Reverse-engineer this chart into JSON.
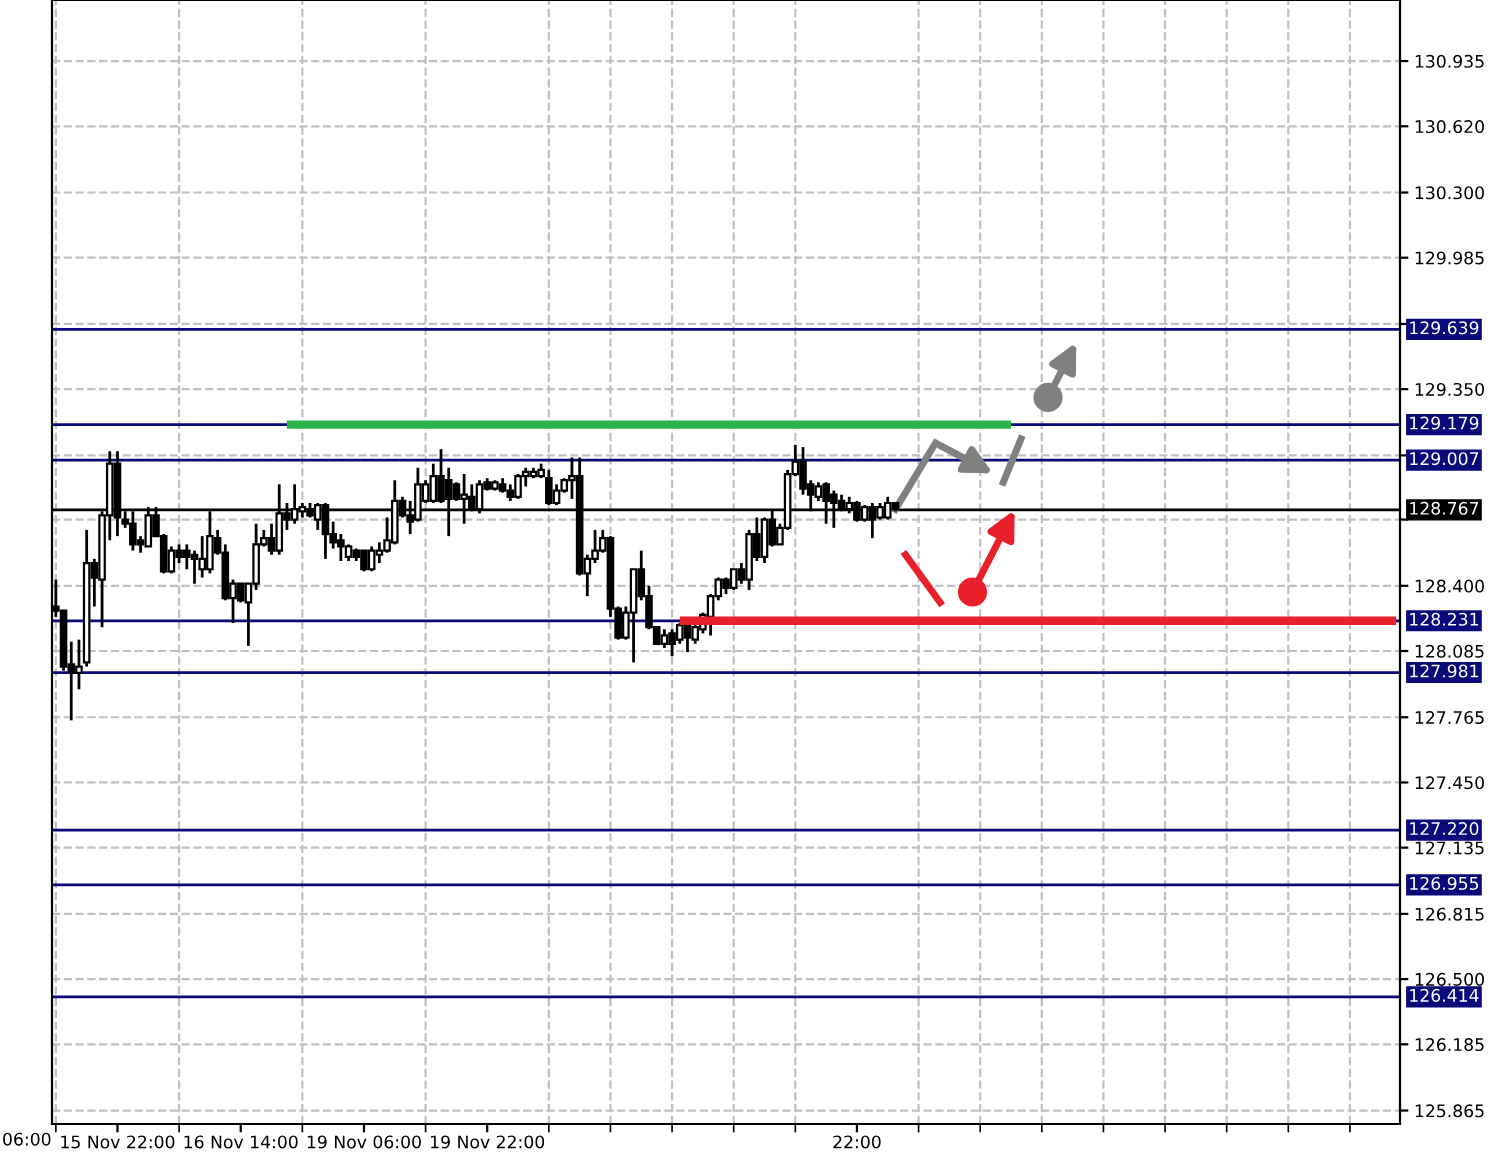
{
  "chart_data": {
    "type": "candlestick",
    "annotations": [
      "06:00"
    ],
    "categories": [
      null,
      null,
      null,
      null,
      null,
      null,
      null,
      null,
      "15 Nov 22:00",
      null,
      null,
      null,
      null,
      null,
      null,
      null,
      null,
      null,
      null,
      null,
      null,
      null,
      null,
      null,
      "16 Nov 14:00",
      null,
      null,
      null,
      null,
      null,
      null,
      null,
      null,
      null,
      null,
      null,
      null,
      null,
      null,
      null,
      "19 Nov 06:00",
      null,
      null,
      null,
      null,
      null,
      null,
      null,
      null,
      null,
      null,
      null,
      null,
      null,
      null,
      null,
      "19 Nov 22:00",
      null,
      null,
      null,
      null,
      null,
      null,
      null,
      null,
      null,
      null,
      null,
      null,
      null,
      null,
      null,
      null,
      null,
      null,
      null,
      null,
      null,
      null,
      null,
      null,
      null,
      null,
      null,
      null,
      null,
      null,
      null,
      null,
      null,
      null,
      null,
      null,
      null,
      null,
      null,
      null,
      null,
      null,
      null,
      null,
      null,
      null,
      null,
      "22:00",
      null,
      null,
      null,
      null,
      null,
      null,
      null,
      null,
      null,
      null,
      null,
      null,
      null,
      null,
      null,
      null,
      null,
      null,
      null,
      null,
      null,
      null,
      null,
      null,
      null,
      null,
      null,
      null,
      null,
      null,
      null,
      null,
      null,
      null,
      null,
      null,
      null,
      null,
      null,
      null,
      null,
      null,
      null,
      null,
      null,
      null,
      null,
      null,
      null,
      null,
      null,
      null,
      null,
      null,
      null,
      null,
      null,
      null,
      null,
      null,
      null,
      null,
      null,
      null,
      null,
      null,
      null,
      null,
      null,
      null
    ],
    "ohlc": [
      [
        128.3,
        128.43,
        128.25,
        128.28
      ],
      [
        128.28,
        128.28,
        127.99,
        128.01
      ],
      [
        128.02,
        128.13,
        127.75,
        127.98
      ],
      [
        127.98,
        128.14,
        127.9,
        128.01
      ],
      [
        128.03,
        128.67,
        128.01,
        128.51
      ],
      [
        128.51,
        128.53,
        128.3,
        128.44
      ],
      [
        128.43,
        128.76,
        128.2,
        128.74
      ],
      [
        128.74,
        129.05,
        128.62,
        128.99
      ],
      [
        128.99,
        129.05,
        128.64,
        128.73
      ],
      [
        128.72,
        128.76,
        128.68,
        128.7
      ],
      [
        128.7,
        128.76,
        128.57,
        128.6
      ],
      [
        128.62,
        128.64,
        128.56,
        128.6
      ],
      [
        128.59,
        128.78,
        128.59,
        128.74
      ],
      [
        128.74,
        128.78,
        128.64,
        128.64
      ],
      [
        128.64,
        128.65,
        128.46,
        128.47
      ],
      [
        128.47,
        128.59,
        128.46,
        128.57
      ],
      [
        128.57,
        128.6,
        128.51,
        128.54
      ],
      [
        128.57,
        128.6,
        128.48,
        128.54
      ],
      [
        128.55,
        128.57,
        128.41,
        128.53
      ],
      [
        128.48,
        128.64,
        128.44,
        128.53
      ],
      [
        128.48,
        128.76,
        128.46,
        128.64
      ],
      [
        128.63,
        128.67,
        128.55,
        128.56
      ],
      [
        128.56,
        128.6,
        128.33,
        128.34
      ],
      [
        128.34,
        128.43,
        128.22,
        128.41
      ],
      [
        128.41,
        128.41,
        128.32,
        128.33
      ],
      [
        128.32,
        128.41,
        128.11,
        128.41
      ],
      [
        128.41,
        128.7,
        128.38,
        128.6
      ],
      [
        128.6,
        128.67,
        128.59,
        128.63
      ],
      [
        128.63,
        128.7,
        128.55,
        128.57
      ],
      [
        128.57,
        128.89,
        128.55,
        128.75
      ],
      [
        128.75,
        128.8,
        128.67,
        128.72
      ],
      [
        128.72,
        128.89,
        128.7,
        128.77
      ],
      [
        128.76,
        128.8,
        128.73,
        128.78
      ],
      [
        128.77,
        128.8,
        128.73,
        128.74
      ],
      [
        128.72,
        128.8,
        128.67,
        128.79
      ],
      [
        128.79,
        128.8,
        128.53,
        128.65
      ],
      [
        128.65,
        128.71,
        128.58,
        128.61
      ],
      [
        128.62,
        128.65,
        128.52,
        128.59
      ],
      [
        128.54,
        128.6,
        128.52,
        128.59
      ],
      [
        128.57,
        128.58,
        128.52,
        128.54
      ],
      [
        128.57,
        128.57,
        128.47,
        128.48
      ],
      [
        128.48,
        128.59,
        128.47,
        128.57
      ],
      [
        128.55,
        128.61,
        128.51,
        128.57
      ],
      [
        128.57,
        128.73,
        128.56,
        128.62
      ],
      [
        128.61,
        128.91,
        128.6,
        128.81
      ],
      [
        128.81,
        128.83,
        128.73,
        128.74
      ],
      [
        128.74,
        128.81,
        128.65,
        128.71
      ],
      [
        128.72,
        128.97,
        128.71,
        128.89
      ],
      [
        128.81,
        128.91,
        128.8,
        128.89
      ],
      [
        128.81,
        128.99,
        128.8,
        128.93
      ],
      [
        128.93,
        129.06,
        128.8,
        128.81
      ],
      [
        128.91,
        128.97,
        128.64,
        128.82
      ],
      [
        128.89,
        128.9,
        128.81,
        128.82
      ],
      [
        128.82,
        128.94,
        128.7,
        128.84
      ],
      [
        128.83,
        128.89,
        128.76,
        128.77
      ],
      [
        128.77,
        128.91,
        128.75,
        128.89
      ],
      [
        128.9,
        128.92,
        128.86,
        128.87
      ],
      [
        128.87,
        128.91,
        128.86,
        128.9
      ],
      [
        128.89,
        128.92,
        128.85,
        128.86
      ],
      [
        128.86,
        128.89,
        128.81,
        128.83
      ],
      [
        128.83,
        128.94,
        128.82,
        128.93
      ],
      [
        128.93,
        128.97,
        128.88,
        128.95
      ],
      [
        128.93,
        128.97,
        128.92,
        128.95
      ],
      [
        128.93,
        128.99,
        128.92,
        128.96
      ],
      [
        128.92,
        128.96,
        128.79,
        128.8
      ],
      [
        128.8,
        128.89,
        128.79,
        128.86
      ],
      [
        128.86,
        128.92,
        128.85,
        128.91
      ],
      [
        128.91,
        129.02,
        128.82,
        128.93
      ],
      [
        128.93,
        129.02,
        128.45,
        128.46
      ],
      [
        128.46,
        128.55,
        128.35,
        128.53
      ],
      [
        128.53,
        128.67,
        128.51,
        128.57
      ],
      [
        128.57,
        128.67,
        128.56,
        128.63
      ],
      [
        128.63,
        128.64,
        128.25,
        128.29
      ],
      [
        128.29,
        128.3,
        128.14,
        128.15
      ],
      [
        128.15,
        128.3,
        128.14,
        128.27
      ],
      [
        128.27,
        128.48,
        128.03,
        128.48
      ],
      [
        128.48,
        128.57,
        128.33,
        128.35
      ],
      [
        128.35,
        128.4,
        128.19,
        128.2
      ],
      [
        128.2,
        128.2,
        128.12,
        128.12
      ],
      [
        128.12,
        128.19,
        128.1,
        128.16
      ],
      [
        128.17,
        128.19,
        128.06,
        128.12
      ],
      [
        128.14,
        128.22,
        128.12,
        128.21
      ],
      [
        128.21,
        128.22,
        128.08,
        128.15
      ],
      [
        128.14,
        128.21,
        128.12,
        128.2
      ],
      [
        128.19,
        128.27,
        128.17,
        128.26
      ],
      [
        128.25,
        128.36,
        128.16,
        128.35
      ],
      [
        128.35,
        128.44,
        128.33,
        128.43
      ],
      [
        128.43,
        128.44,
        128.36,
        128.39
      ],
      [
        128.39,
        128.48,
        128.38,
        128.48
      ],
      [
        128.48,
        128.51,
        128.41,
        128.43
      ],
      [
        128.43,
        128.67,
        128.38,
        128.65
      ],
      [
        128.65,
        128.73,
        128.52,
        128.54
      ],
      [
        128.54,
        128.73,
        128.51,
        128.72
      ],
      [
        128.72,
        128.77,
        128.59,
        128.6
      ],
      [
        128.6,
        128.7,
        128.6,
        128.68
      ],
      [
        128.68,
        128.96,
        128.67,
        128.94
      ],
      [
        128.94,
        129.08,
        128.93,
        129.0
      ],
      [
        129.0,
        129.07,
        128.84,
        128.87
      ],
      [
        128.89,
        128.91,
        128.76,
        128.84
      ],
      [
        128.83,
        128.9,
        128.81,
        128.88
      ],
      [
        128.89,
        128.9,
        128.7,
        128.81
      ],
      [
        128.84,
        128.86,
        128.68,
        128.8
      ],
      [
        128.81,
        128.84,
        128.76,
        128.77
      ],
      [
        128.77,
        128.83,
        128.75,
        128.8
      ],
      [
        128.8,
        128.81,
        128.71,
        128.72
      ],
      [
        128.72,
        128.79,
        128.71,
        128.78
      ],
      [
        128.78,
        128.8,
        128.63,
        128.72
      ],
      [
        128.73,
        128.8,
        128.72,
        128.78
      ],
      [
        128.73,
        128.83,
        128.72,
        128.8
      ],
      [
        128.8,
        128.8,
        128.76,
        128.77
      ],
      null,
      null,
      null,
      null,
      null,
      null,
      null,
      null,
      null,
      null,
      null,
      null,
      null,
      null,
      null,
      null,
      null,
      null,
      null,
      null,
      null,
      null,
      null,
      null,
      null,
      null,
      null,
      null,
      null,
      null,
      null,
      null,
      null,
      null,
      null,
      null,
      null,
      null,
      null,
      null,
      null,
      null,
      null,
      null,
      null,
      null,
      null,
      null,
      null,
      null,
      null,
      null,
      null,
      null,
      null,
      null,
      null,
      null,
      null,
      null,
      null,
      null,
      null,
      null,
      null
    ],
    "series": [
      {
        "type": "line",
        "color": "#2db34a",
        "values": [
          null,
          null,
          null,
          null,
          null,
          null,
          null,
          null,
          null,
          null,
          null,
          null,
          null,
          null,
          null,
          null,
          null,
          null,
          null,
          null,
          null,
          null,
          null,
          null,
          null,
          null,
          null,
          null,
          null,
          null,
          129.179,
          129.179,
          129.179,
          129.179,
          129.179,
          129.179,
          129.179,
          129.179,
          129.179,
          129.179,
          129.179,
          129.179,
          129.179,
          129.179,
          129.179,
          129.179,
          129.179,
          129.179,
          129.179,
          129.179,
          129.179,
          129.179,
          129.179,
          129.179,
          129.179,
          129.179,
          129.179,
          129.179,
          129.179,
          129.179,
          129.179,
          129.179,
          129.179,
          129.179,
          129.179,
          129.179,
          129.179,
          129.179,
          129.179,
          129.179,
          129.179,
          129.179,
          129.179,
          129.179,
          129.179,
          129.179,
          129.179,
          129.179,
          129.179,
          129.179,
          129.179,
          129.179,
          129.179,
          129.179,
          129.179,
          129.179,
          129.179,
          129.179,
          129.179,
          129.179,
          129.179,
          129.179,
          129.179,
          129.179,
          129.179,
          129.179,
          129.179,
          129.179,
          129.179,
          129.179,
          129.179,
          129.179,
          129.179,
          129.179,
          129.179,
          129.179,
          129.179,
          129.179,
          129.179,
          129.179,
          129.179,
          129.179,
          129.179,
          129.179,
          129.179,
          129.179,
          129.179,
          129.179,
          129.179,
          129.179,
          129.179,
          129.179,
          129.179,
          129.179,
          129.179,
          null,
          null,
          null,
          null,
          null,
          null,
          null,
          null,
          null,
          null,
          null,
          null,
          null,
          null,
          null,
          null,
          null,
          null,
          null,
          null,
          null,
          null,
          null,
          null,
          null,
          null,
          null,
          null,
          null,
          null,
          null,
          null,
          null,
          null,
          null,
          null,
          null,
          null,
          null,
          null,
          null,
          null,
          null,
          null,
          null,
          null,
          null,
          null,
          null,
          null
        ]
      },
      {
        "type": "line",
        "color": "#e8202a",
        "values": [
          null,
          null,
          null,
          null,
          null,
          null,
          null,
          null,
          null,
          null,
          null,
          null,
          null,
          null,
          null,
          null,
          null,
          null,
          null,
          null,
          null,
          null,
          null,
          null,
          null,
          null,
          null,
          null,
          null,
          null,
          null,
          null,
          null,
          null,
          null,
          null,
          null,
          null,
          null,
          null,
          null,
          null,
          null,
          null,
          null,
          null,
          null,
          null,
          null,
          null,
          null,
          null,
          null,
          null,
          null,
          null,
          null,
          null,
          null,
          null,
          null,
          null,
          null,
          null,
          null,
          null,
          null,
          null,
          null,
          null,
          null,
          null,
          null,
          null,
          null,
          null,
          null,
          null,
          null,
          null,
          null,
          128.231,
          128.231,
          128.231,
          128.231,
          128.231,
          128.231,
          128.231,
          128.231,
          128.231,
          128.231,
          128.231,
          128.231,
          128.231,
          128.231,
          128.231,
          128.231,
          128.231,
          128.231,
          128.231,
          128.231,
          128.231,
          128.231,
          128.231,
          128.231,
          128.231,
          128.231,
          128.231,
          128.231,
          128.231,
          128.231,
          128.231,
          128.231,
          128.231,
          128.231,
          128.231,
          128.231,
          128.231,
          128.231,
          128.231,
          128.231,
          128.231,
          128.231,
          128.231,
          128.231,
          128.231,
          128.231,
          128.231,
          128.231,
          128.231,
          128.231,
          128.231,
          128.231,
          128.231,
          128.231,
          128.231,
          128.231,
          128.231,
          128.231,
          128.231,
          128.231,
          128.231,
          128.231,
          128.231,
          128.231,
          128.231,
          128.231,
          128.231,
          128.231,
          128.231,
          128.231,
          128.231,
          128.231,
          128.231,
          128.231,
          128.231,
          128.231,
          128.231,
          128.231,
          128.231,
          128.231,
          128.231,
          128.231,
          128.231,
          128.231,
          128.231,
          128.231,
          128.231,
          128.231,
          128.231,
          128.231,
          128.231,
          128.231,
          128.231,
          128.231
        ]
      }
    ],
    "ylim": [
      125.8,
      131.23
    ],
    "yticks": [
      130.935,
      {
        "value": 130.62,
        "label": "130.620"
      },
      {
        "value": 130.3,
        "label": "130.300"
      },
      129.985,
      {
        "value": 129.665,
        "label": null
      },
      {
        "value": 129.35,
        "label": "129.350"
      },
      {
        "value": 129.03,
        "label": null
      },
      {
        "value": 128.72,
        "label": null
      },
      {
        "value": 128.4,
        "label": "128.400"
      },
      128.085,
      127.765,
      {
        "value": 127.45,
        "label": "127.450"
      },
      127.135,
      126.815,
      {
        "value": 126.5,
        "label": "126.500"
      },
      126.185,
      125.865
    ],
    "ref_lines": [
      {
        "axis": "y",
        "value": 129.639,
        "label": "129.639",
        "color": "#0a0a7a"
      },
      {
        "axis": "y",
        "value": 129.179,
        "label": "129.179",
        "color": "#0a0a7a"
      },
      {
        "axis": "y",
        "value": 129.007,
        "label": "129.007",
        "color": "#0a0a7a"
      },
      {
        "axis": "y",
        "value": 128.767,
        "label": "128.767",
        "color": "#000000"
      },
      {
        "axis": "y",
        "value": 128.231,
        "label": "128.231",
        "color": "#0a0a7a"
      },
      {
        "axis": "y",
        "value": 127.981,
        "label": "127.981",
        "color": "#0a0a7a"
      },
      {
        "axis": "y",
        "value": 127.22,
        "label": "127.220",
        "color": "#0a0a7a"
      },
      {
        "axis": "y",
        "value": 126.955,
        "label": "126.955",
        "color": "#0a0a7a"
      },
      {
        "axis": "y",
        "value": 126.414,
        "label": "126.414",
        "color": "#0a0a7a"
      }
    ],
    "grid": true
  }
}
